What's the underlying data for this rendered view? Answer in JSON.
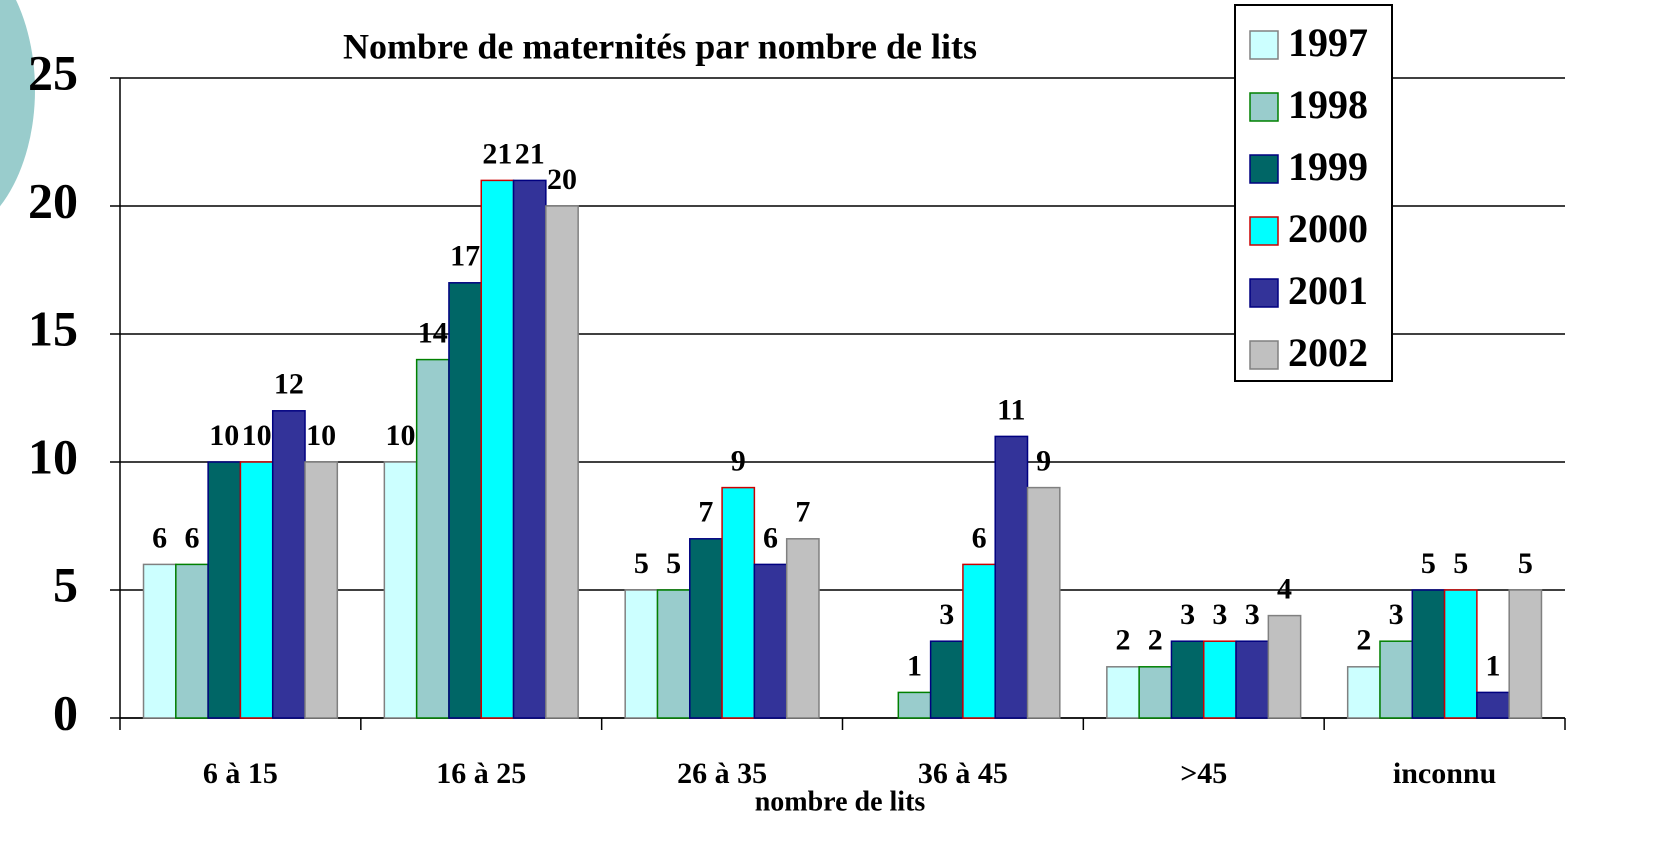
{
  "chart_data": {
    "type": "bar",
    "title": "Nombre de maternités par nombre de lits",
    "x_label": "nombre de lits",
    "categories": [
      "6 à 15",
      "16 à 25",
      "26 à 35",
      "36 à 45",
      ">45",
      "inconnu"
    ],
    "series": [
      {
        "name": "1997",
        "color": "#ccffff",
        "edgecolor": "#808080",
        "values": [
          6,
          10,
          5,
          null,
          2,
          2
        ]
      },
      {
        "name": "1998",
        "color": "#99cccc",
        "edgecolor": "#008000",
        "values": [
          6,
          14,
          5,
          1,
          2,
          3
        ]
      },
      {
        "name": "1999",
        "color": "#006666",
        "edgecolor": "#000080",
        "values": [
          10,
          17,
          7,
          3,
          3,
          5
        ]
      },
      {
        "name": "2000",
        "color": "#00ffff",
        "edgecolor": "#cc0000",
        "values": [
          10,
          21,
          9,
          6,
          3,
          5
        ]
      },
      {
        "name": "2001",
        "color": "#333399",
        "edgecolor": "#000080",
        "values": [
          12,
          21,
          6,
          11,
          3,
          1
        ]
      },
      {
        "name": "2002",
        "color": "#c0c0c0",
        "edgecolor": "#808080",
        "values": [
          10,
          20,
          7,
          9,
          4,
          5
        ]
      }
    ],
    "ylim": [
      0,
      25
    ],
    "yticks": [
      0,
      5,
      10,
      15,
      20,
      25
    ],
    "grid": true,
    "legend": "upper right"
  }
}
